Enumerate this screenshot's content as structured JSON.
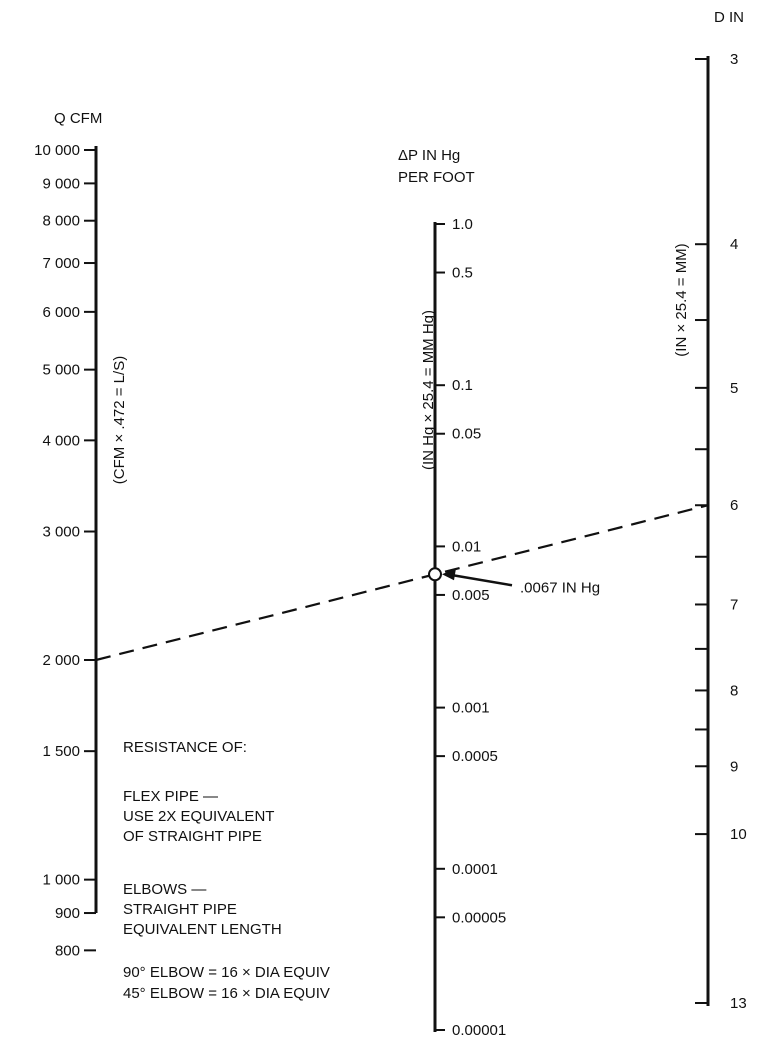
{
  "chart_data": {
    "type": "nomogram",
    "axes": [
      {
        "id": "q",
        "title": "Q CFM",
        "conversion": "(CFM × .472 = L/S)",
        "scale": "log",
        "ticks": [
          {
            "value": 10000,
            "label": "10 000"
          },
          {
            "value": 9000,
            "label": "9 000"
          },
          {
            "value": 8000,
            "label": "8 000"
          },
          {
            "value": 7000,
            "label": "7 000"
          },
          {
            "value": 6000,
            "label": "6 000"
          },
          {
            "value": 5000,
            "label": "5 000"
          },
          {
            "value": 4000,
            "label": "4 000"
          },
          {
            "value": 3000,
            "label": "3 000"
          },
          {
            "value": 2000,
            "label": "2 000"
          },
          {
            "value": 1500,
            "label": "1 500"
          },
          {
            "value": 1000,
            "label": "1 000"
          },
          {
            "value": 900,
            "label": "900"
          },
          {
            "value": 800,
            "label": "800"
          }
        ]
      },
      {
        "id": "dp",
        "title_lines": [
          "ΔP IN Hg",
          "PER FOOT"
        ],
        "conversion": "(IN Hg × 25.4 = MM Hg)",
        "scale": "log",
        "ticks": [
          {
            "value": 1.0,
            "label": "1.0"
          },
          {
            "value": 0.5,
            "label": "0.5"
          },
          {
            "value": 0.1,
            "label": "0.1"
          },
          {
            "value": 0.05,
            "label": "0.05"
          },
          {
            "value": 0.01,
            "label": "0.01"
          },
          {
            "value": 0.005,
            "label": "0.005"
          },
          {
            "value": 0.001,
            "label": "0.001"
          },
          {
            "value": 0.0005,
            "label": "0.0005"
          },
          {
            "value": 0.0001,
            "label": "0.0001"
          },
          {
            "value": 5e-05,
            "label": "0.00005"
          },
          {
            "value": 1e-05,
            "label": "0.00001"
          }
        ]
      },
      {
        "id": "d",
        "title": "D IN",
        "conversion": "(IN × 25.4 = MM)",
        "scale": "log",
        "ticks": [
          {
            "value": 3,
            "label": "3"
          },
          {
            "value": 4,
            "label": "4"
          },
          {
            "value": 4.5,
            "label": ""
          },
          {
            "value": 5,
            "label": "5"
          },
          {
            "value": 5.5,
            "label": ""
          },
          {
            "value": 6,
            "label": "6"
          },
          {
            "value": 6.5,
            "label": ""
          },
          {
            "value": 7,
            "label": "7"
          },
          {
            "value": 7.5,
            "label": ""
          },
          {
            "value": 8,
            "label": "8"
          },
          {
            "value": 8.5,
            "label": ""
          },
          {
            "value": 9,
            "label": "9"
          },
          {
            "value": 10,
            "label": "10"
          },
          {
            "value": 13,
            "label": "13"
          }
        ]
      }
    ],
    "example": {
      "q": 2000,
      "d": 6,
      "dp": 0.0067,
      "label": ".0067 IN Hg"
    },
    "notes": [
      "RESISTANCE OF:",
      "FLEX PIPE —",
      "USE 2X EQUIVALENT",
      "OF STRAIGHT PIPE",
      "ELBOWS —",
      "STRAIGHT PIPE",
      "EQUIVALENT LENGTH",
      "90° ELBOW = 16 × DIA EQUIV",
      "45° ELBOW = 16 × DIA EQUIV"
    ]
  }
}
